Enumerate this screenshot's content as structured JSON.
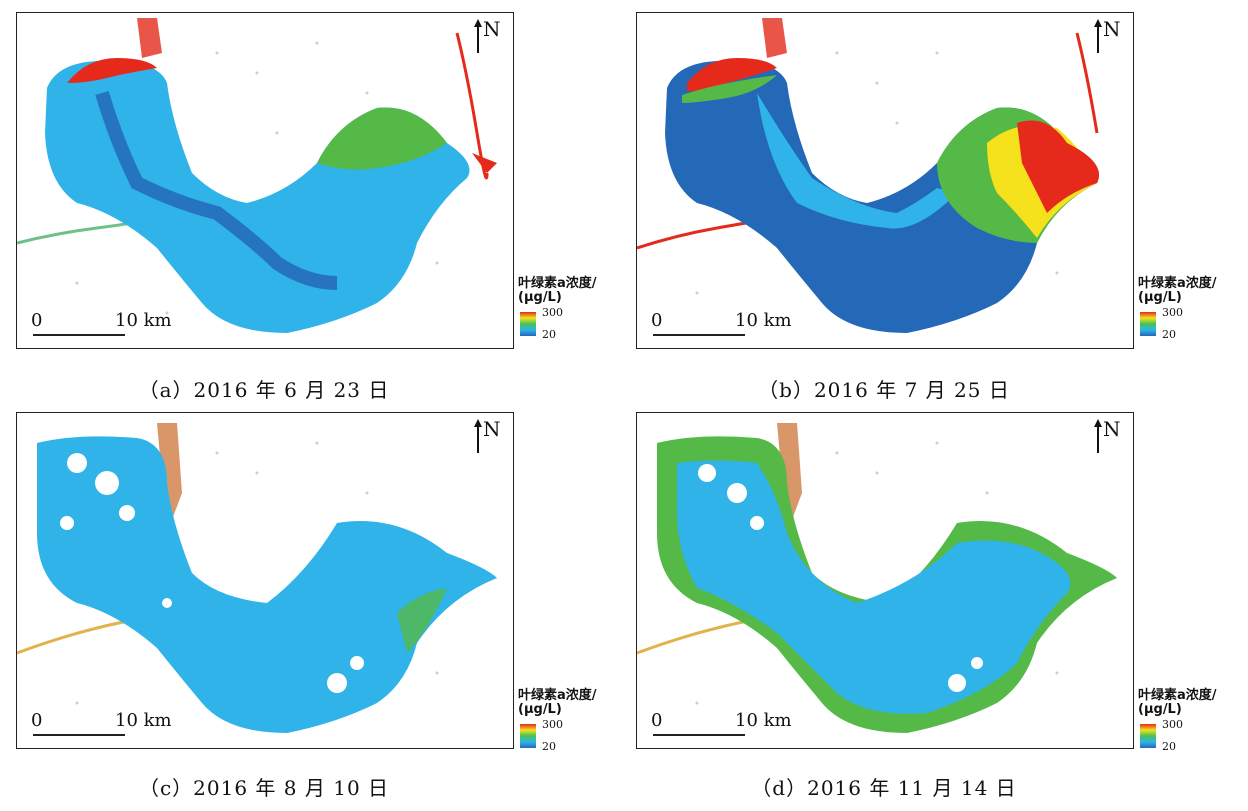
{
  "north_label": "N",
  "scale": {
    "zero": "0",
    "ten": "10 km"
  },
  "legend": {
    "title": "叶绿素a浓度/",
    "unit": "(μg/L)",
    "max": "300",
    "min": "20"
  },
  "colors": {
    "ramp": [
      "#e52a1c",
      "#f5e11c",
      "#43c25a",
      "#2fb3e8",
      "#2468b8"
    ],
    "lake_light_blue": "#2fb3e8",
    "lake_dark_blue": "#2468b8",
    "green": "#55b947",
    "red": "#e52a1c"
  },
  "panels": [
    {
      "caption": "（a）2016 年 6 月 23 日",
      "dominant": "light-blue with dark-blue channel, green NE bay, red NW corner"
    },
    {
      "caption": "（b）2016 年 7 月 25 日",
      "dominant": "dark-blue west, green-yellow-red east"
    },
    {
      "caption": "（c）2016 年 8 月 10 日",
      "dominant": "light-blue throughout"
    },
    {
      "caption": "（d）2016 年 11 月 14 日",
      "dominant": "light-blue with green margins"
    }
  ]
}
